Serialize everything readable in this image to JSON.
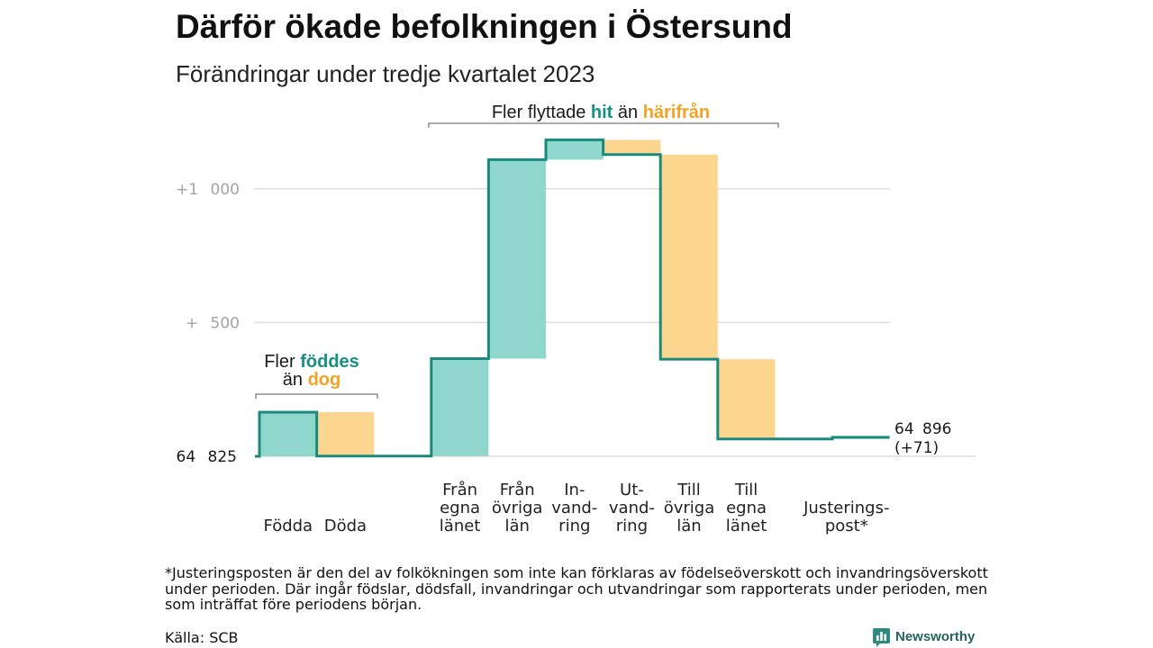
{
  "chart_data": {
    "type": "bar",
    "waterfall": true,
    "title": "Därför ökade befolkningen i Östersund",
    "subtitle": "Förändringar under tredje kvartalet 2023",
    "start_value": 64825,
    "start_label": "64 825",
    "end_value": 64896,
    "end_label": "64 896",
    "end_change_label": "(+71)",
    "categories": [
      [
        "Födda"
      ],
      [
        "Döda"
      ],
      [
        "Från",
        "egna",
        "länet"
      ],
      [
        "Från",
        "övriga",
        "län"
      ],
      [
        "In-",
        "vand-",
        "ring"
      ],
      [
        "Ut-",
        "vand-",
        "ring"
      ],
      [
        "Till",
        "övriga",
        "län"
      ],
      [
        "Till",
        "egna",
        "länet"
      ],
      [
        "Justerings-",
        "post*"
      ]
    ],
    "values": [
      165,
      -164,
      364,
      744,
      74,
      -55,
      -765,
      -298,
      6
    ],
    "yticks": [
      {
        "value": 500,
        "label": "+ 500"
      },
      {
        "value": 1000,
        "label": "+1 000"
      }
    ],
    "ylim": [
      0,
      1200
    ],
    "grid": true,
    "annotations": {
      "migration": {
        "lead": "Fler flyttade",
        "in_word": "hit",
        "joiner": "än",
        "out_word": "härifrån"
      },
      "births": {
        "lead": "Fler",
        "in_word": "föddes",
        "joiner": "än",
        "out_word": "dog"
      }
    },
    "colors": {
      "increase": "#8fd6cc",
      "decrease": "#fcd68f",
      "line": "#1b8a7c",
      "increase_text": "#169184",
      "decrease_text": "#f2a325",
      "grid": "#dedede"
    }
  },
  "footnote": {
    "lines": [
      "*Justeringsposten är den del av folkökningen som inte kan förklaras av födelseöverskott och invandringsöverskott",
      "under perioden. Där ingår födslar, dödsfall, invandringar och utvandringar som rapporterats under perioden, men",
      "som inträffat före periodens början."
    ]
  },
  "source": "Källa: SCB",
  "brand": {
    "name": "Newsworthy",
    "icon": "newsworthy-chart-bubble-icon"
  }
}
